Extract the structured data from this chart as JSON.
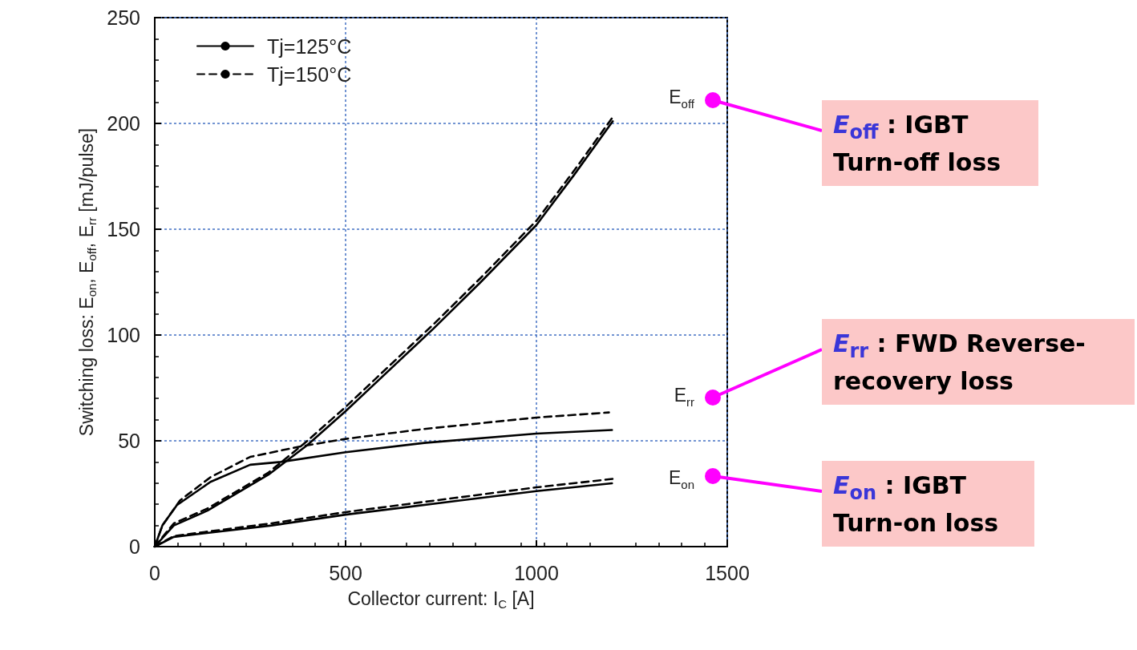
{
  "chart_data": {
    "type": "line",
    "xlabel": "Collector current: I$_{C}$ [A]",
    "ylabel": "Switching loss: E$_{on}$, E$_{off}$, E$_{rr}$ [mJ/pulse]",
    "xlim": [
      0,
      1500
    ],
    "xticks": [
      0,
      500,
      1000,
      1500
    ],
    "ylim": [
      0,
      250
    ],
    "yticks": [
      0,
      50,
      100,
      150,
      200,
      250
    ],
    "grid": true,
    "legend": "top left",
    "marker": "none",
    "series": [
      {
        "name": "Tj=125°C",
        "color": "#000000",
        "line_style": "solid",
        "x": [
          0,
          50,
          138,
          298,
          400,
          500,
          730,
          854,
          1000,
          1100,
          1200
        ],
        "values": [
          0,
          10,
          17,
          34,
          48,
          64,
          103,
          125,
          152,
          176,
          201
        ]
      },
      {
        "name": "Tj=150°C",
        "color": "#000000",
        "line_style": "dashed",
        "x": [
          0,
          50,
          138,
          298,
          400,
          500,
          730,
          854,
          1000,
          1100,
          1200
        ],
        "values": [
          0,
          11,
          18,
          35,
          50,
          66,
          105,
          127,
          154,
          178,
          203
        ]
      },
      {
        "color": "#000000",
        "line_style": "solid",
        "x": [
          0,
          20,
          58,
          146,
          250,
          330,
          500,
          706,
          1000,
          1198
        ],
        "values": [
          0,
          10,
          19.6,
          30.6,
          38.7,
          40,
          44.6,
          49,
          53.4,
          55.1
        ]
      },
      {
        "color": "#000000",
        "line_style": "dashed",
        "x": [
          0,
          20,
          66,
          146,
          250,
          386,
          500,
          706,
          1000,
          1190
        ],
        "values": [
          0,
          10,
          21.8,
          32.8,
          42.4,
          47.5,
          50.9,
          55.6,
          61,
          63.4
        ]
      },
      {
        "color": "#000000",
        "line_style": "solid",
        "x": [
          0,
          50,
          306,
          500,
          786,
          1000,
          1198
        ],
        "values": [
          0,
          4.6,
          10,
          15.1,
          21.5,
          26.2,
          29.9
        ]
      },
      {
        "color": "#000000",
        "line_style": "dashed",
        "x": [
          0,
          50,
          306,
          500,
          786,
          1000,
          1200
        ],
        "values": [
          0,
          5,
          11,
          16.3,
          23,
          28,
          32
        ]
      }
    ],
    "annotations": [
      "E$_{off}$",
      "E$_{rr}$",
      "E$_{on}$",
      "E$_{off}$ : IGBT Turn-off loss",
      "E$_{rr}$ : FWD Reverse-recovery loss",
      "E$_{on}$ : IGBT Turn-on loss"
    ]
  }
}
